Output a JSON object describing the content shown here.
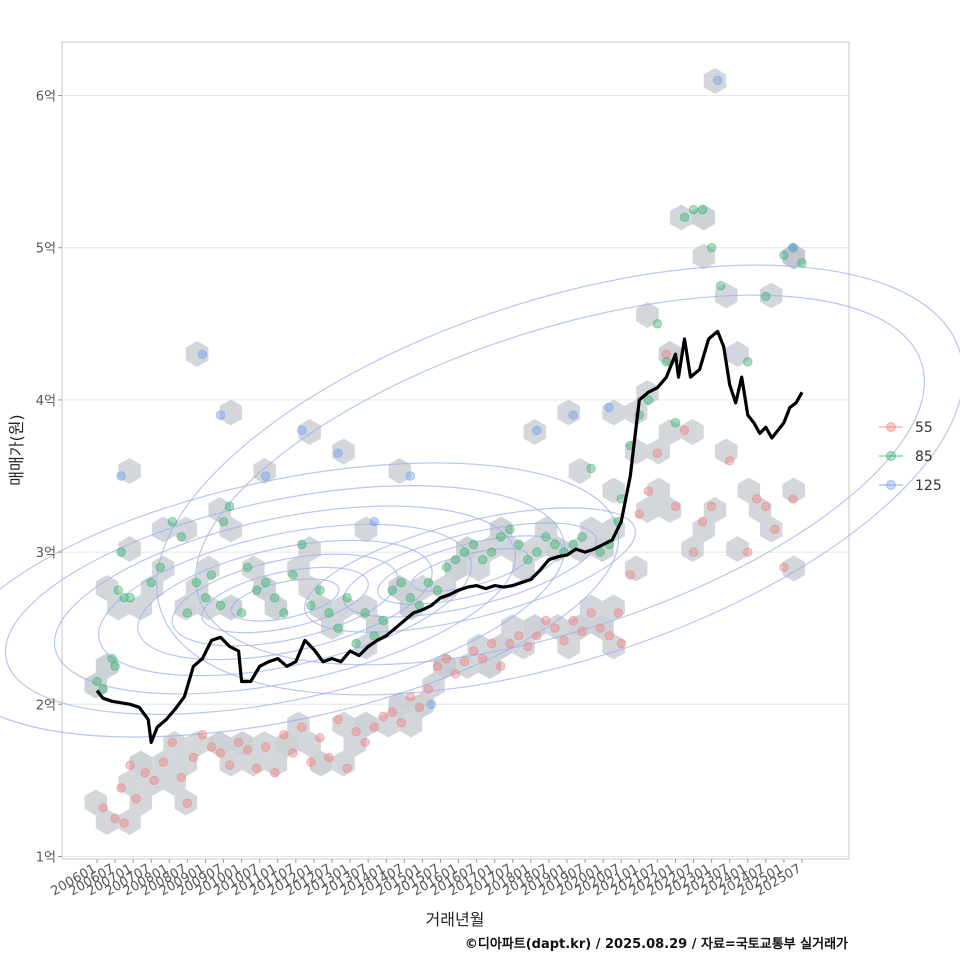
{
  "chart_data": {
    "type": "scatter",
    "title": "",
    "xlabel": "거래년월",
    "ylabel": "매매가(원)",
    "caption": "©디아파트(dapt.kr) / 2025.08.29 / 자료=국토교통부 실거래가",
    "x_range": [
      "2006-01",
      "2025-07"
    ],
    "ylim": [
      1.0,
      6.3
    ],
    "y_unit": "억",
    "grid": true,
    "legend_position": "right",
    "x_tick_labels": [
      "200601",
      "200607",
      "200701",
      "200707",
      "200801",
      "200807",
      "200901",
      "200907",
      "201001",
      "201007",
      "201101",
      "201107",
      "201201",
      "201207",
      "201301",
      "201307",
      "201401",
      "201407",
      "201501",
      "201507",
      "201601",
      "201607",
      "201701",
      "201707",
      "201801",
      "201807",
      "201901",
      "201907",
      "202001",
      "202007",
      "202101",
      "202107",
      "202201",
      "202207",
      "202301",
      "202307",
      "202401",
      "202407",
      "202501",
      "202507"
    ],
    "y_ticks": [
      {
        "value": 1,
        "label": "1억"
      },
      {
        "value": 2,
        "label": "2억"
      },
      {
        "value": 3,
        "label": "3억"
      },
      {
        "value": 4,
        "label": "4억"
      },
      {
        "value": 5,
        "label": "5억"
      },
      {
        "value": 6,
        "label": "6억"
      }
    ],
    "series": [
      {
        "name": "55",
        "kind": "points",
        "color": "#f08080",
        "points": [
          [
            "2006-03",
            1.32
          ],
          [
            "2006-07",
            1.25
          ],
          [
            "2006-09",
            1.45
          ],
          [
            "2006-10",
            1.22
          ],
          [
            "2006-12",
            1.6
          ],
          [
            "2007-02",
            1.38
          ],
          [
            "2007-05",
            1.55
          ],
          [
            "2007-08",
            1.5
          ],
          [
            "2007-11",
            1.62
          ],
          [
            "2008-02",
            1.75
          ],
          [
            "2008-05",
            1.52
          ],
          [
            "2008-07",
            1.35
          ],
          [
            "2008-09",
            1.65
          ],
          [
            "2008-12",
            1.8
          ],
          [
            "2009-03",
            1.72
          ],
          [
            "2009-06",
            1.68
          ],
          [
            "2009-09",
            1.6
          ],
          [
            "2009-12",
            1.75
          ],
          [
            "2010-03",
            1.7
          ],
          [
            "2010-06",
            1.58
          ],
          [
            "2010-09",
            1.72
          ],
          [
            "2010-12",
            1.55
          ],
          [
            "2011-03",
            1.8
          ],
          [
            "2011-06",
            1.68
          ],
          [
            "2011-09",
            1.85
          ],
          [
            "2011-12",
            1.62
          ],
          [
            "2012-03",
            1.78
          ],
          [
            "2012-06",
            1.65
          ],
          [
            "2012-09",
            1.9
          ],
          [
            "2012-12",
            1.58
          ],
          [
            "2013-03",
            1.82
          ],
          [
            "2013-06",
            1.75
          ],
          [
            "2013-09",
            1.85
          ],
          [
            "2013-12",
            1.92
          ],
          [
            "2014-03",
            1.95
          ],
          [
            "2014-06",
            1.88
          ],
          [
            "2014-09",
            2.05
          ],
          [
            "2014-12",
            1.98
          ],
          [
            "2015-03",
            2.1
          ],
          [
            "2015-06",
            2.25
          ],
          [
            "2015-09",
            2.3
          ],
          [
            "2015-12",
            2.2
          ],
          [
            "2016-03",
            2.28
          ],
          [
            "2016-06",
            2.35
          ],
          [
            "2016-09",
            2.3
          ],
          [
            "2016-12",
            2.4
          ],
          [
            "2017-03",
            2.25
          ],
          [
            "2017-06",
            2.4
          ],
          [
            "2017-09",
            2.45
          ],
          [
            "2017-12",
            2.38
          ],
          [
            "2018-03",
            2.45
          ],
          [
            "2018-06",
            2.55
          ],
          [
            "2018-09",
            2.5
          ],
          [
            "2018-12",
            2.42
          ],
          [
            "2019-03",
            2.55
          ],
          [
            "2019-06",
            2.48
          ],
          [
            "2019-09",
            2.6
          ],
          [
            "2019-12",
            2.5
          ],
          [
            "2020-03",
            2.45
          ],
          [
            "2020-06",
            2.6
          ],
          [
            "2020-07",
            2.4
          ],
          [
            "2020-10",
            2.85
          ],
          [
            "2021-01",
            3.25
          ],
          [
            "2021-04",
            3.4
          ],
          [
            "2021-07",
            3.65
          ],
          [
            "2021-10",
            4.3
          ],
          [
            "2022-01",
            3.3
          ],
          [
            "2022-04",
            3.8
          ],
          [
            "2022-07",
            3.0
          ],
          [
            "2022-10",
            3.2
          ],
          [
            "2023-01",
            3.3
          ],
          [
            "2023-07",
            3.6
          ],
          [
            "2024-01",
            3.0
          ],
          [
            "2024-04",
            3.35
          ],
          [
            "2024-07",
            3.3
          ],
          [
            "2024-10",
            3.15
          ],
          [
            "2025-01",
            2.9
          ],
          [
            "2025-04",
            3.35
          ]
        ]
      },
      {
        "name": "85",
        "kind": "points",
        "color": "#3cb371",
        "points": [
          [
            "2006-01",
            2.15
          ],
          [
            "2006-03",
            2.1
          ],
          [
            "2006-06",
            2.3
          ],
          [
            "2006-07",
            2.25
          ],
          [
            "2006-08",
            2.75
          ],
          [
            "2006-09",
            3.0
          ],
          [
            "2006-10",
            2.7
          ],
          [
            "2006-12",
            2.7
          ],
          [
            "2007-07",
            2.8
          ],
          [
            "2007-10",
            2.9
          ],
          [
            "2008-02",
            3.2
          ],
          [
            "2008-05",
            3.1
          ],
          [
            "2008-07",
            2.6
          ],
          [
            "2008-10",
            2.8
          ],
          [
            "2009-01",
            2.7
          ],
          [
            "2009-03",
            2.85
          ],
          [
            "2009-06",
            2.65
          ],
          [
            "2009-07",
            3.2
          ],
          [
            "2009-09",
            3.3
          ],
          [
            "2010-01",
            2.6
          ],
          [
            "2010-03",
            2.9
          ],
          [
            "2010-06",
            2.75
          ],
          [
            "2010-09",
            2.8
          ],
          [
            "2010-12",
            2.7
          ],
          [
            "2011-03",
            2.6
          ],
          [
            "2011-06",
            2.85
          ],
          [
            "2011-09",
            3.05
          ],
          [
            "2011-12",
            2.65
          ],
          [
            "2012-03",
            2.75
          ],
          [
            "2012-06",
            2.6
          ],
          [
            "2012-09",
            2.5
          ],
          [
            "2012-12",
            2.7
          ],
          [
            "2013-03",
            2.4
          ],
          [
            "2013-06",
            2.6
          ],
          [
            "2013-09",
            2.45
          ],
          [
            "2013-12",
            2.55
          ],
          [
            "2014-03",
            2.75
          ],
          [
            "2014-06",
            2.8
          ],
          [
            "2014-09",
            2.7
          ],
          [
            "2014-12",
            2.65
          ],
          [
            "2015-03",
            2.8
          ],
          [
            "2015-06",
            2.75
          ],
          [
            "2015-09",
            2.9
          ],
          [
            "2015-12",
            2.95
          ],
          [
            "2016-03",
            3.0
          ],
          [
            "2016-06",
            3.05
          ],
          [
            "2016-09",
            2.95
          ],
          [
            "2016-12",
            3.0
          ],
          [
            "2017-03",
            3.1
          ],
          [
            "2017-06",
            3.15
          ],
          [
            "2017-09",
            3.05
          ],
          [
            "2017-12",
            2.95
          ],
          [
            "2018-03",
            3.0
          ],
          [
            "2018-06",
            3.1
          ],
          [
            "2018-09",
            3.05
          ],
          [
            "2018-12",
            3.0
          ],
          [
            "2019-03",
            3.05
          ],
          [
            "2019-06",
            3.1
          ],
          [
            "2019-09",
            3.55
          ],
          [
            "2019-12",
            3.0
          ],
          [
            "2020-03",
            3.05
          ],
          [
            "2020-06",
            3.2
          ],
          [
            "2020-07",
            3.35
          ],
          [
            "2020-10",
            3.7
          ],
          [
            "2021-01",
            3.9
          ],
          [
            "2021-04",
            4.0
          ],
          [
            "2021-07",
            4.5
          ],
          [
            "2021-10",
            4.25
          ],
          [
            "2022-01",
            3.85
          ],
          [
            "2022-04",
            5.2
          ],
          [
            "2022-07",
            5.25
          ],
          [
            "2022-10",
            5.25
          ],
          [
            "2023-01",
            5.0
          ],
          [
            "2023-04",
            4.75
          ],
          [
            "2024-01",
            4.25
          ],
          [
            "2024-07",
            4.68
          ],
          [
            "2025-01",
            4.95
          ],
          [
            "2025-04",
            5.0
          ],
          [
            "2025-07",
            4.9
          ]
        ]
      },
      {
        "name": "125",
        "kind": "points",
        "color": "#6f9ff0",
        "points": [
          [
            "2006-09",
            3.5
          ],
          [
            "2008-12",
            4.3
          ],
          [
            "2009-06",
            3.9
          ],
          [
            "2010-09",
            3.5
          ],
          [
            "2011-09",
            3.8
          ],
          [
            "2012-09",
            3.65
          ],
          [
            "2013-09",
            3.2
          ],
          [
            "2014-09",
            3.5
          ],
          [
            "2015-04",
            2.0
          ],
          [
            "2018-03",
            3.8
          ],
          [
            "2019-03",
            3.9
          ],
          [
            "2020-03",
            3.95
          ],
          [
            "2023-03",
            6.1
          ],
          [
            "2025-04",
            5.0
          ]
        ]
      },
      {
        "name": "",
        "kind": "line",
        "color": "#000000",
        "points": [
          [
            "2006-01",
            2.09
          ],
          [
            "2006-03",
            2.04
          ],
          [
            "2006-06",
            2.02
          ],
          [
            "2006-09",
            2.01
          ],
          [
            "2006-12",
            2.0
          ],
          [
            "2007-03",
            1.98
          ],
          [
            "2007-06",
            1.9
          ],
          [
            "2007-07",
            1.75
          ],
          [
            "2007-09",
            1.85
          ],
          [
            "2007-12",
            1.9
          ],
          [
            "2008-03",
            1.97
          ],
          [
            "2008-06",
            2.05
          ],
          [
            "2008-09",
            2.25
          ],
          [
            "2008-12",
            2.3
          ],
          [
            "2009-03",
            2.42
          ],
          [
            "2009-06",
            2.44
          ],
          [
            "2009-09",
            2.38
          ],
          [
            "2009-12",
            2.35
          ],
          [
            "2010-01",
            2.15
          ],
          [
            "2010-04",
            2.15
          ],
          [
            "2010-07",
            2.25
          ],
          [
            "2010-10",
            2.28
          ],
          [
            "2011-01",
            2.3
          ],
          [
            "2011-04",
            2.25
          ],
          [
            "2011-07",
            2.28
          ],
          [
            "2011-10",
            2.42
          ],
          [
            "2012-01",
            2.36
          ],
          [
            "2012-04",
            2.28
          ],
          [
            "2012-07",
            2.3
          ],
          [
            "2012-10",
            2.28
          ],
          [
            "2013-01",
            2.35
          ],
          [
            "2013-04",
            2.32
          ],
          [
            "2013-07",
            2.38
          ],
          [
            "2013-10",
            2.42
          ],
          [
            "2014-01",
            2.45
          ],
          [
            "2014-04",
            2.5
          ],
          [
            "2014-07",
            2.55
          ],
          [
            "2014-10",
            2.6
          ],
          [
            "2015-01",
            2.62
          ],
          [
            "2015-04",
            2.65
          ],
          [
            "2015-07",
            2.7
          ],
          [
            "2015-10",
            2.72
          ],
          [
            "2016-01",
            2.75
          ],
          [
            "2016-04",
            2.77
          ],
          [
            "2016-07",
            2.78
          ],
          [
            "2016-10",
            2.76
          ],
          [
            "2017-01",
            2.78
          ],
          [
            "2017-04",
            2.77
          ],
          [
            "2017-07",
            2.78
          ],
          [
            "2017-10",
            2.8
          ],
          [
            "2018-01",
            2.82
          ],
          [
            "2018-04",
            2.88
          ],
          [
            "2018-07",
            2.95
          ],
          [
            "2018-10",
            2.97
          ],
          [
            "2019-01",
            2.98
          ],
          [
            "2019-04",
            3.02
          ],
          [
            "2019-07",
            3.0
          ],
          [
            "2019-10",
            3.02
          ],
          [
            "2020-01",
            3.05
          ],
          [
            "2020-04",
            3.08
          ],
          [
            "2020-07",
            3.2
          ],
          [
            "2020-10",
            3.5
          ],
          [
            "2021-01",
            4.0
          ],
          [
            "2021-04",
            4.05
          ],
          [
            "2021-07",
            4.08
          ],
          [
            "2021-10",
            4.15
          ],
          [
            "2022-01",
            4.3
          ],
          [
            "2022-02",
            4.15
          ],
          [
            "2022-04",
            4.4
          ],
          [
            "2022-06",
            4.15
          ],
          [
            "2022-09",
            4.2
          ],
          [
            "2022-12",
            4.4
          ],
          [
            "2023-03",
            4.45
          ],
          [
            "2023-05",
            4.35
          ],
          [
            "2023-07",
            4.1
          ],
          [
            "2023-09",
            3.98
          ],
          [
            "2023-11",
            4.15
          ],
          [
            "2024-01",
            3.9
          ],
          [
            "2024-03",
            3.85
          ],
          [
            "2024-05",
            3.78
          ],
          [
            "2024-07",
            3.82
          ],
          [
            "2024-09",
            3.75
          ],
          [
            "2024-11",
            3.8
          ],
          [
            "2025-01",
            3.85
          ],
          [
            "2025-03",
            3.95
          ],
          [
            "2025-05",
            3.98
          ],
          [
            "2025-07",
            4.05
          ]
        ]
      }
    ]
  }
}
